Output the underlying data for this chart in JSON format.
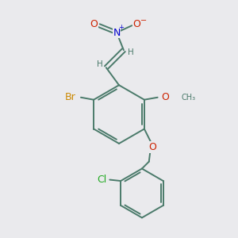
{
  "background_color": "#eaecef",
  "atom_colors": {
    "C": "#4a7a6a",
    "H": "#4a7a6a",
    "N": "#0000cc",
    "O": "#cc2200",
    "Br": "#cc8800",
    "Cl": "#22aa22",
    "bond": "#4a7a6a"
  },
  "figsize": [
    3.0,
    3.0
  ],
  "dpi": 100,
  "bg": "#ebebee"
}
